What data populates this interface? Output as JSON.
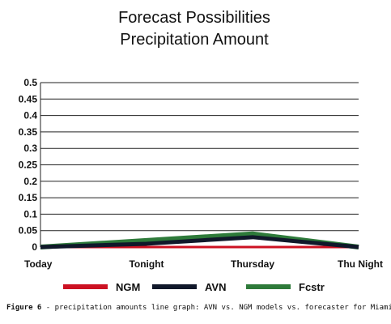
{
  "chart_data": {
    "type": "line",
    "title": [
      "Forecast Possibilities",
      "Precipitation Amount"
    ],
    "categories": [
      "Today",
      "Tonight",
      "Thursday",
      "Thu Night"
    ],
    "ylim": [
      0,
      0.5
    ],
    "yticks": [
      "0",
      "0.05",
      "0.1",
      "0.15",
      "0.2",
      "0.25",
      "0.3",
      "0.35",
      "0.4",
      "0.45",
      "0.5"
    ],
    "grid": true,
    "legend_position": "bottom",
    "series": [
      {
        "name": "NGM",
        "color": "#cc1122",
        "values": [
          0,
          0,
          0,
          0
        ]
      },
      {
        "name": "AVN",
        "color": "#10182a",
        "values": [
          0,
          0.01,
          0.03,
          0
        ]
      },
      {
        "name": "Fcstr",
        "color": "#2e7a3a",
        "values": [
          0,
          0.02,
          0.04,
          0
        ]
      }
    ]
  },
  "caption": {
    "label": "Figure 6",
    "text": " - precipitation amounts line graph: AVN vs. NGM models vs. forecaster for Miami"
  }
}
